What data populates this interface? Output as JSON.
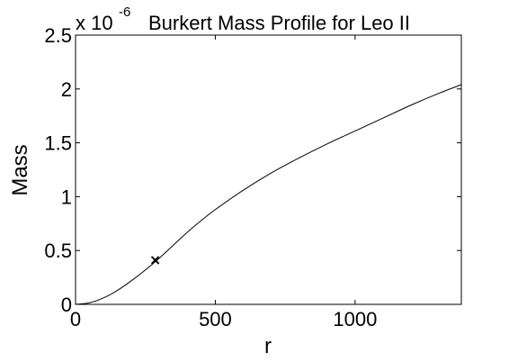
{
  "chart_data": {
    "type": "line",
    "title": "Burkert Mass Profile for Leo II",
    "xlabel": "r",
    "ylabel": "Mass",
    "y_multiplier_base": "x 10",
    "y_multiplier_exponent": "-6",
    "xlim": [
      0,
      1380
    ],
    "ylim": [
      0,
      2.5
    ],
    "x_ticks": [
      0,
      500,
      1000
    ],
    "x_tick_labels": [
      "0",
      "500",
      "1000"
    ],
    "y_ticks": [
      0,
      0.5,
      1,
      1.5,
      2,
      2.5
    ],
    "y_tick_labels": [
      "0",
      "0.5",
      "1",
      "1.5",
      "2",
      "2.5"
    ],
    "grid": false,
    "line_color": "#000000",
    "series": [
      {
        "values": [
          [
            0,
            0
          ],
          [
            50,
            0.015
          ],
          [
            100,
            0.06
          ],
          [
            150,
            0.13
          ],
          [
            200,
            0.22
          ],
          [
            250,
            0.32
          ],
          [
            300,
            0.43
          ],
          [
            350,
            0.55
          ],
          [
            400,
            0.67
          ],
          [
            450,
            0.78
          ],
          [
            500,
            0.88
          ],
          [
            600,
            1.06
          ],
          [
            700,
            1.22
          ],
          [
            800,
            1.36
          ],
          [
            900,
            1.49
          ],
          [
            1000,
            1.61
          ],
          [
            1100,
            1.73
          ],
          [
            1200,
            1.85
          ],
          [
            1300,
            1.96
          ],
          [
            1380,
            2.04
          ]
        ]
      }
    ],
    "markers": [
      {
        "symbol": "x",
        "x": 285,
        "y": 0.41
      }
    ]
  }
}
